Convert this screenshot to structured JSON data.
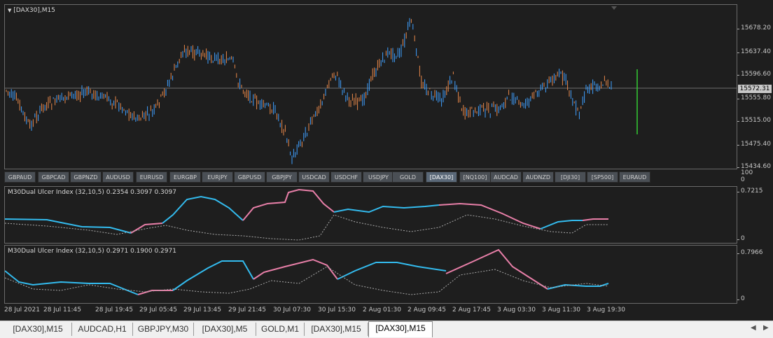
{
  "main_chart": {
    "title": "[DAX30],M15",
    "current_price": "15572.31",
    "price_ticks": [
      "15678.20",
      "15637.40",
      "15596.60",
      "15555.80",
      "15515.00",
      "15475.40",
      "15434.60"
    ]
  },
  "symbol_bar": {
    "buttons": [
      "GBPAUD",
      "GBPCAD",
      "GBPNZD",
      "AUDUSD",
      "EURUSD",
      "EURGBP",
      "EURJPY",
      "GBPUSD",
      "GBPJPY",
      "USDCAD",
      "USDCHF",
      "USDJPY",
      "GOLD",
      "[DAX30]",
      "[NQ100]",
      "AUDCAD",
      "AUDNZD",
      "[DJI30]",
      "[SP500]",
      "EURAUD"
    ],
    "active": "[DAX30]",
    "scale_top": "100",
    "scale_bottom": "0"
  },
  "indicator_1": {
    "label": "M30Dual Ulcer Index (32,10,5) 0.2354 0.3097 0.3097",
    "top_tick": "0.7215",
    "bottom_tick": "0"
  },
  "indicator_2": {
    "label": "M30Dual Ulcer Index (32,10,5) 0.2971 0.1900 0.2971",
    "top_tick": "0.7966",
    "bottom_tick": "0"
  },
  "time_axis": [
    "28 Jul 2021",
    "28 Jul 11:45",
    "28 Jul 19:45",
    "29 Jul 05:45",
    "29 Jul 13:45",
    "29 Jul 21:45",
    "30 Jul 07:30",
    "30 Jul 15:30",
    "2 Aug 01:30",
    "2 Aug 09:45",
    "2 Aug 17:45",
    "3 Aug 03:30",
    "3 Aug 11:30",
    "3 Aug 19:30"
  ],
  "tabs": {
    "items": [
      "[DAX30],M15",
      "AUDCAD,H1",
      "GBPJPY,M30",
      "[DAX30],M5",
      "GOLD,M1",
      "[DAX30],M15",
      "[DAX30],M15"
    ],
    "active_index": 6
  },
  "colors": {
    "bull": "#3fa0ff",
    "bear": "#e8884a",
    "ulcer_up": "#33bbee",
    "ulcer_down": "#e87fa8",
    "signal": "#aaaaaa",
    "background": "#1e1e1e"
  }
}
